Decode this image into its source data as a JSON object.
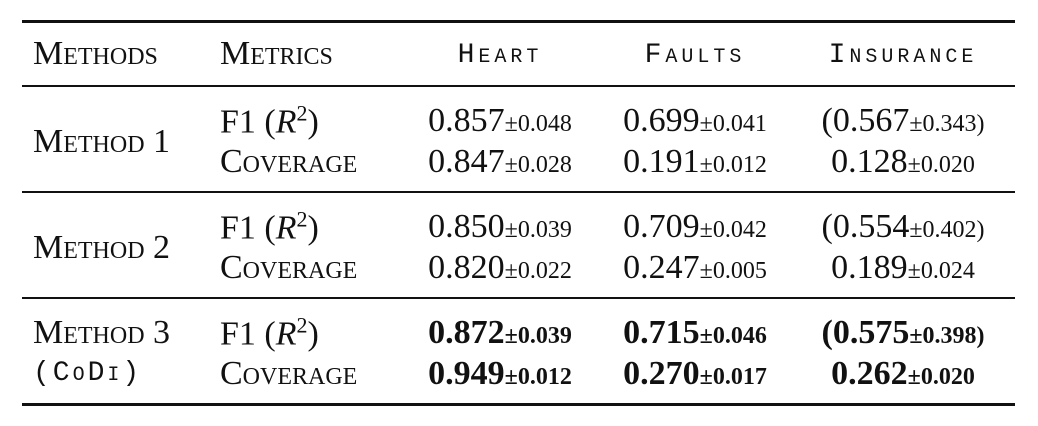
{
  "table": {
    "header": [
      "Methods",
      "Metrics",
      "Heart",
      "Faults",
      "Insurance"
    ],
    "groups": [
      {
        "method": "Method 1",
        "bold": false,
        "rows": [
          {
            "metric": [
              "F1 (",
              "R",
              "2",
              ")"
            ],
            "cells": [
              {
                "mean": "0.857",
                "std": "±0.048"
              },
              {
                "mean": "0.699",
                "std": "±0.041"
              },
              {
                "mean": "(0.567",
                "std": "±0.343)"
              }
            ]
          },
          {
            "metric": [
              "Coverage"
            ],
            "cells": [
              {
                "mean": "0.847",
                "std": "±0.028"
              },
              {
                "mean": "0.191",
                "std": "±0.012"
              },
              {
                "mean": "0.128",
                "std": "±0.020"
              }
            ]
          }
        ]
      },
      {
        "method": "Method 2",
        "bold": false,
        "rows": [
          {
            "metric": [
              "F1 (",
              "R",
              "2",
              ")"
            ],
            "cells": [
              {
                "mean": "0.850",
                "std": "±0.039"
              },
              {
                "mean": "0.709",
                "std": "±0.042"
              },
              {
                "mean": "(0.554",
                "std": "±0.402)"
              }
            ]
          },
          {
            "metric": [
              "Coverage"
            ],
            "cells": [
              {
                "mean": "0.820",
                "std": "±0.022"
              },
              {
                "mean": "0.247",
                "std": "±0.005"
              },
              {
                "mean": "0.189",
                "std": "±0.024"
              }
            ]
          }
        ]
      },
      {
        "method": "Method 3",
        "method_sub": "(CoDi)",
        "bold": true,
        "rows": [
          {
            "metric": [
              "F1 (",
              "R",
              "2",
              ")"
            ],
            "cells": [
              {
                "mean": "0.872",
                "std": "±0.039"
              },
              {
                "mean": "0.715",
                "std": "±0.046"
              },
              {
                "mean": "(0.575",
                "std": "±0.398)"
              }
            ]
          },
          {
            "metric": [
              "Coverage"
            ],
            "cells": [
              {
                "mean": "0.949",
                "std": "±0.012"
              },
              {
                "mean": "0.270",
                "std": "±0.017"
              },
              {
                "mean": "0.262",
                "std": "±0.020"
              }
            ]
          }
        ]
      }
    ]
  }
}
